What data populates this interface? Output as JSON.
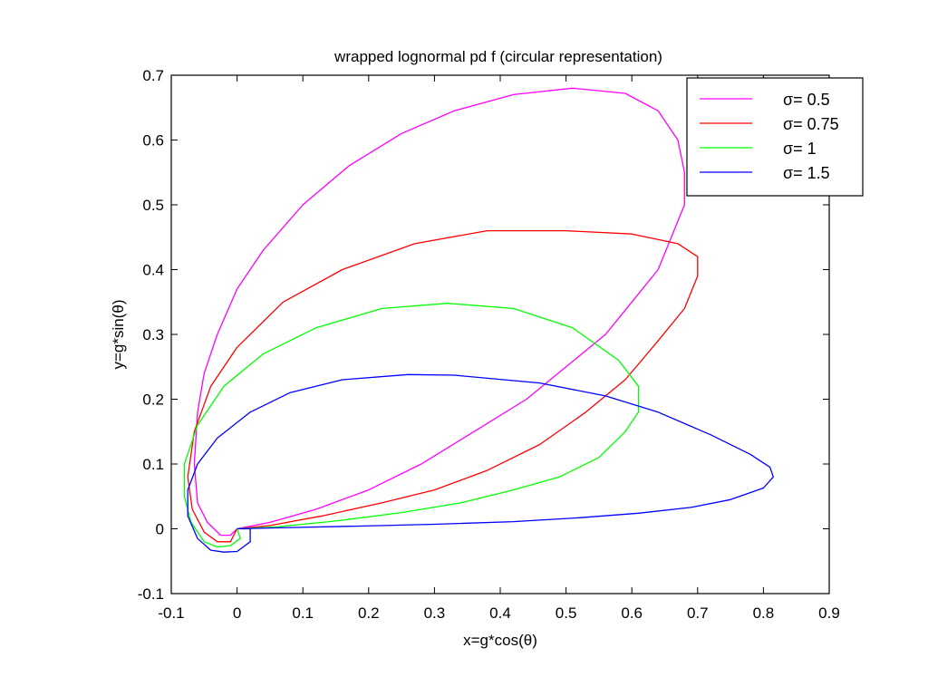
{
  "chart_data": {
    "type": "line",
    "title": "wrapped lognormal pd f (circular representation)",
    "xlabel": "x=g*cos(θ)",
    "ylabel": "y=g*sin(θ)",
    "xlim": [
      -0.1,
      0.9
    ],
    "ylim": [
      -0.1,
      0.7
    ],
    "xticks": [
      -0.1,
      0,
      0.1,
      0.2,
      0.3,
      0.4,
      0.5,
      0.6,
      0.7,
      0.8,
      0.9
    ],
    "yticks": [
      -0.1,
      0,
      0.1,
      0.2,
      0.3,
      0.4,
      0.5,
      0.6,
      0.7
    ],
    "xtick_labels": [
      "-0.1",
      "0",
      "0.1",
      "0.2",
      "0.3",
      "0.4",
      "0.5",
      "0.6",
      "0.7",
      "0.8",
      "0.9"
    ],
    "ytick_labels": [
      "-0.1",
      "0",
      "0.1",
      "0.2",
      "0.3",
      "0.4",
      "0.5",
      "0.6",
      "0.7"
    ],
    "grid": false,
    "legend_position": "top-right",
    "series": [
      {
        "name": "σ= 0.5",
        "color": "#ff00ff",
        "points": [
          [
            0,
            0
          ],
          [
            0.05,
            0.01
          ],
          [
            0.12,
            0.03
          ],
          [
            0.2,
            0.06
          ],
          [
            0.28,
            0.1
          ],
          [
            0.36,
            0.15
          ],
          [
            0.44,
            0.2
          ],
          [
            0.5,
            0.25
          ],
          [
            0.56,
            0.3
          ],
          [
            0.6,
            0.35
          ],
          [
            0.64,
            0.4
          ],
          [
            0.66,
            0.45
          ],
          [
            0.68,
            0.5
          ],
          [
            0.68,
            0.55
          ],
          [
            0.67,
            0.6
          ],
          [
            0.64,
            0.645
          ],
          [
            0.59,
            0.672
          ],
          [
            0.51,
            0.68
          ],
          [
            0.42,
            0.67
          ],
          [
            0.33,
            0.645
          ],
          [
            0.25,
            0.61
          ],
          [
            0.17,
            0.56
          ],
          [
            0.1,
            0.5
          ],
          [
            0.04,
            0.43
          ],
          [
            0.0,
            0.37
          ],
          [
            -0.03,
            0.3
          ],
          [
            -0.05,
            0.24
          ],
          [
            -0.06,
            0.18
          ],
          [
            -0.065,
            0.1
          ],
          [
            -0.06,
            0.04
          ],
          [
            -0.045,
            0.01
          ],
          [
            -0.025,
            -0.01
          ],
          [
            -0.01,
            -0.01
          ],
          [
            0,
            0
          ]
        ]
      },
      {
        "name": "σ= 0.75",
        "color": "#ff0000",
        "points": [
          [
            0,
            0
          ],
          [
            0.05,
            0.005
          ],
          [
            0.13,
            0.02
          ],
          [
            0.22,
            0.04
          ],
          [
            0.3,
            0.06
          ],
          [
            0.38,
            0.09
          ],
          [
            0.46,
            0.13
          ],
          [
            0.53,
            0.18
          ],
          [
            0.59,
            0.23
          ],
          [
            0.64,
            0.29
          ],
          [
            0.68,
            0.34
          ],
          [
            0.7,
            0.39
          ],
          [
            0.7,
            0.42
          ],
          [
            0.67,
            0.44
          ],
          [
            0.6,
            0.455
          ],
          [
            0.5,
            0.46
          ],
          [
            0.38,
            0.46
          ],
          [
            0.27,
            0.44
          ],
          [
            0.16,
            0.4
          ],
          [
            0.07,
            0.35
          ],
          [
            0.0,
            0.28
          ],
          [
            -0.04,
            0.22
          ],
          [
            -0.065,
            0.15
          ],
          [
            -0.075,
            0.08
          ],
          [
            -0.068,
            0.03
          ],
          [
            -0.05,
            -0.005
          ],
          [
            -0.03,
            -0.02
          ],
          [
            -0.01,
            -0.02
          ],
          [
            0,
            0
          ]
        ]
      },
      {
        "name": "σ= 1",
        "color": "#00ff00",
        "points": [
          [
            0,
            0
          ],
          [
            0.06,
            0.003
          ],
          [
            0.15,
            0.012
          ],
          [
            0.25,
            0.025
          ],
          [
            0.34,
            0.04
          ],
          [
            0.42,
            0.06
          ],
          [
            0.49,
            0.08
          ],
          [
            0.55,
            0.11
          ],
          [
            0.59,
            0.15
          ],
          [
            0.61,
            0.18
          ],
          [
            0.61,
            0.22
          ],
          [
            0.58,
            0.26
          ],
          [
            0.51,
            0.31
          ],
          [
            0.42,
            0.34
          ],
          [
            0.32,
            0.348
          ],
          [
            0.22,
            0.34
          ],
          [
            0.12,
            0.31
          ],
          [
            0.04,
            0.27
          ],
          [
            -0.02,
            0.22
          ],
          [
            -0.06,
            0.16
          ],
          [
            -0.08,
            0.1
          ],
          [
            -0.08,
            0.05
          ],
          [
            -0.07,
            0.01
          ],
          [
            -0.05,
            -0.02
          ],
          [
            -0.03,
            -0.028
          ],
          [
            -0.01,
            -0.026
          ],
          [
            0.005,
            -0.015
          ],
          [
            0,
            0
          ]
        ]
      },
      {
        "name": "σ= 1.5",
        "color": "#0000ff",
        "points": [
          [
            0,
            0
          ],
          [
            0.08,
            0.002
          ],
          [
            0.18,
            0.004
          ],
          [
            0.3,
            0.007
          ],
          [
            0.42,
            0.011
          ],
          [
            0.52,
            0.017
          ],
          [
            0.61,
            0.024
          ],
          [
            0.69,
            0.033
          ],
          [
            0.75,
            0.045
          ],
          [
            0.8,
            0.063
          ],
          [
            0.815,
            0.08
          ],
          [
            0.81,
            0.095
          ],
          [
            0.78,
            0.115
          ],
          [
            0.72,
            0.145
          ],
          [
            0.64,
            0.18
          ],
          [
            0.56,
            0.205
          ],
          [
            0.46,
            0.225
          ],
          [
            0.33,
            0.237
          ],
          [
            0.26,
            0.238
          ],
          [
            0.16,
            0.23
          ],
          [
            0.08,
            0.21
          ],
          [
            0.02,
            0.18
          ],
          [
            -0.03,
            0.14
          ],
          [
            -0.06,
            0.1
          ],
          [
            -0.075,
            0.06
          ],
          [
            -0.075,
            0.02
          ],
          [
            -0.06,
            -0.015
          ],
          [
            -0.04,
            -0.033
          ],
          [
            -0.02,
            -0.036
          ],
          [
            0,
            -0.035
          ],
          [
            0.02,
            -0.02
          ],
          [
            0.02,
            0
          ],
          [
            0,
            0
          ]
        ]
      }
    ]
  }
}
